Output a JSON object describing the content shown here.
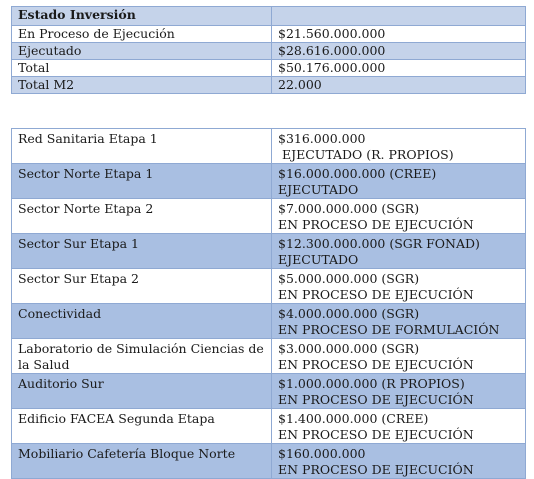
{
  "summary": {
    "header": "Estado Inversión",
    "rows": [
      {
        "label": "En Proceso de Ejecución",
        "value": "$21.560.000.000"
      },
      {
        "label": "Ejecutado",
        "value": "$28.616.000.000"
      },
      {
        "label": "Total",
        "value": "$50.176.000.000"
      },
      {
        "label": "Total M2",
        "value": "22.000"
      }
    ]
  },
  "projects": [
    {
      "name": "Red Sanitaria Etapa 1",
      "amount": "$316.000.000",
      "status": " EJECUTADO (R. PROPIOS)"
    },
    {
      "name": "Sector Norte Etapa 1",
      "amount": "$16.000.000.000 (CREE)",
      "status": "EJECUTADO"
    },
    {
      "name": "Sector Norte Etapa 2",
      "amount": "$7.000.000.000 (SGR)",
      "status": "EN PROCESO DE EJECUCIÓN"
    },
    {
      "name": "Sector Sur Etapa 1",
      "amount": "$12.300.000.000 (SGR FONAD)",
      "status": "EJECUTADO"
    },
    {
      "name": "Sector Sur Etapa 2",
      "amount": "$5.000.000.000 (SGR)",
      "status": "EN PROCESO DE EJECUCIÓN"
    },
    {
      "name": "Conectividad",
      "amount": "$4.000.000.000 (SGR)",
      "status": "EN PROCESO DE FORMULACIÓN"
    },
    {
      "name": "Laboratorio de Simulación Ciencias de la Salud",
      "amount": "$3.000.000.000 (SGR)",
      "status": "EN PROCESO DE EJECUCIÓN"
    },
    {
      "name": "Auditorio Sur",
      "amount": "$1.000.000.000 (R PROPIOS)",
      "status": "EN PROCESO DE EJECUCIÓN"
    },
    {
      "name": "Edificio FACEA Segunda Etapa",
      "amount": "$1.400.000.000 (CREE)",
      "status": "EN PROCESO DE EJECUCIÓN"
    },
    {
      "name": "Mobiliario Cafetería Bloque Norte",
      "amount": "$160.000.000",
      "status": "EN PROCESO DE EJECUCIÓN"
    }
  ]
}
